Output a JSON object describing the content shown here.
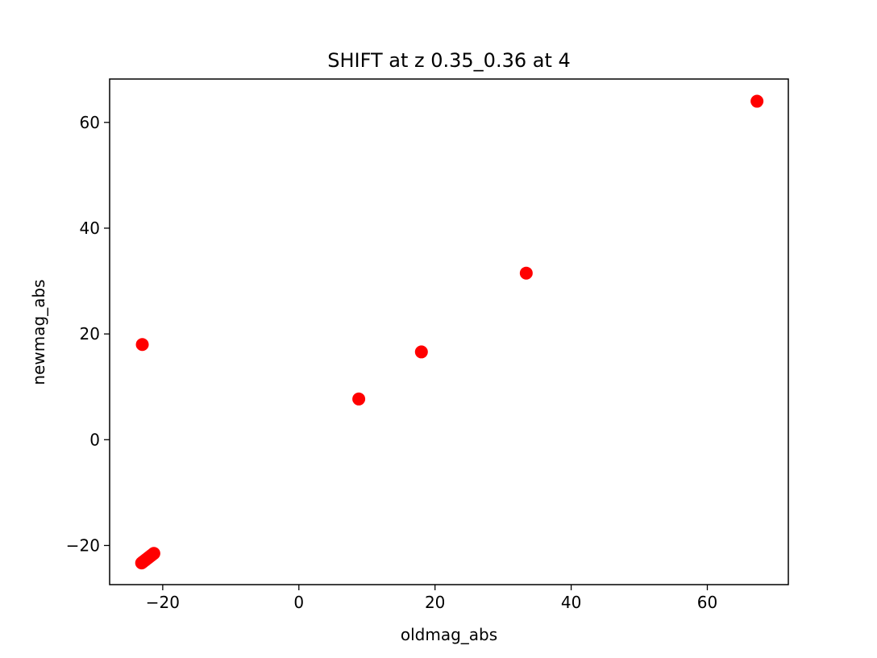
{
  "chart_data": {
    "type": "scatter",
    "title": "SHIFT at z 0.35_0.36 at 4",
    "xlabel": "oldmag_abs",
    "ylabel": "newmag_abs",
    "xlim": [
      -27.8,
      71.9
    ],
    "ylim": [
      -27.4,
      68.2
    ],
    "xticks": [
      -20,
      0,
      20,
      40,
      60
    ],
    "yticks": [
      -20,
      0,
      20,
      40,
      60
    ],
    "xtick_labels": [
      "−20",
      "0",
      "20",
      "40",
      "60"
    ],
    "ytick_labels": [
      "−20",
      "0",
      "20",
      "40",
      "60"
    ],
    "marker_color": "#ff0000",
    "grid": false,
    "series": [
      {
        "x": [
          -23.1,
          -22.9,
          -22.7,
          -22.5,
          -22.3,
          -22.1,
          -21.9,
          -21.7,
          -21.5,
          -21.3,
          -23.0,
          8.8,
          18.0,
          33.4,
          67.3
        ],
        "y": [
          -23.3,
          -23.1,
          -22.9,
          -22.7,
          -22.5,
          -22.3,
          -22.1,
          -21.9,
          -21.7,
          -21.5,
          18.0,
          7.7,
          16.6,
          31.5,
          64.0
        ]
      }
    ]
  }
}
